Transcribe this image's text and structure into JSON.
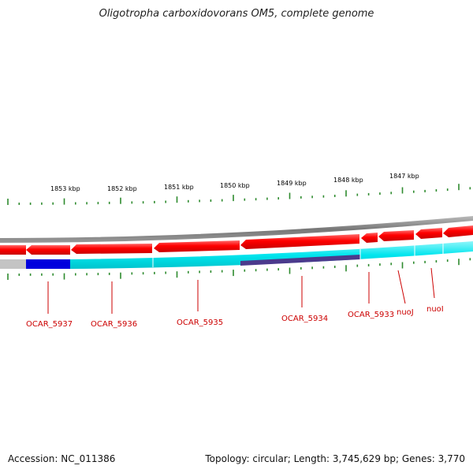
{
  "title": "Oligotropha carboxidovorans OM5, complete genome",
  "footer": {
    "accession": "Accession: NC_011386",
    "summary": "Topology: circular; Length: 3,745,629 bp; Genes: 3,770"
  },
  "scale_labels": [
    "1853 kbp",
    "1852 kbp",
    "1851 kbp",
    "1850 kbp",
    "1849 kbp",
    "1848 kbp",
    "1847 kbp"
  ],
  "gene_labels": [
    "OCAR_5937",
    "OCAR_5936",
    "OCAR_5935",
    "OCAR_5934",
    "OCAR_5933",
    "nuoJ",
    "nuoI"
  ],
  "colors": {
    "backbone": "#888888",
    "gene_arrow": "#ff0000",
    "cds_track": "#00e5ee",
    "highlight_blue": "#0000dd",
    "highlight_purple": "#4b3a8c",
    "gray_feature": "#c0c0c0",
    "tick": "#2e8b2e",
    "label": "#cc0000"
  }
}
